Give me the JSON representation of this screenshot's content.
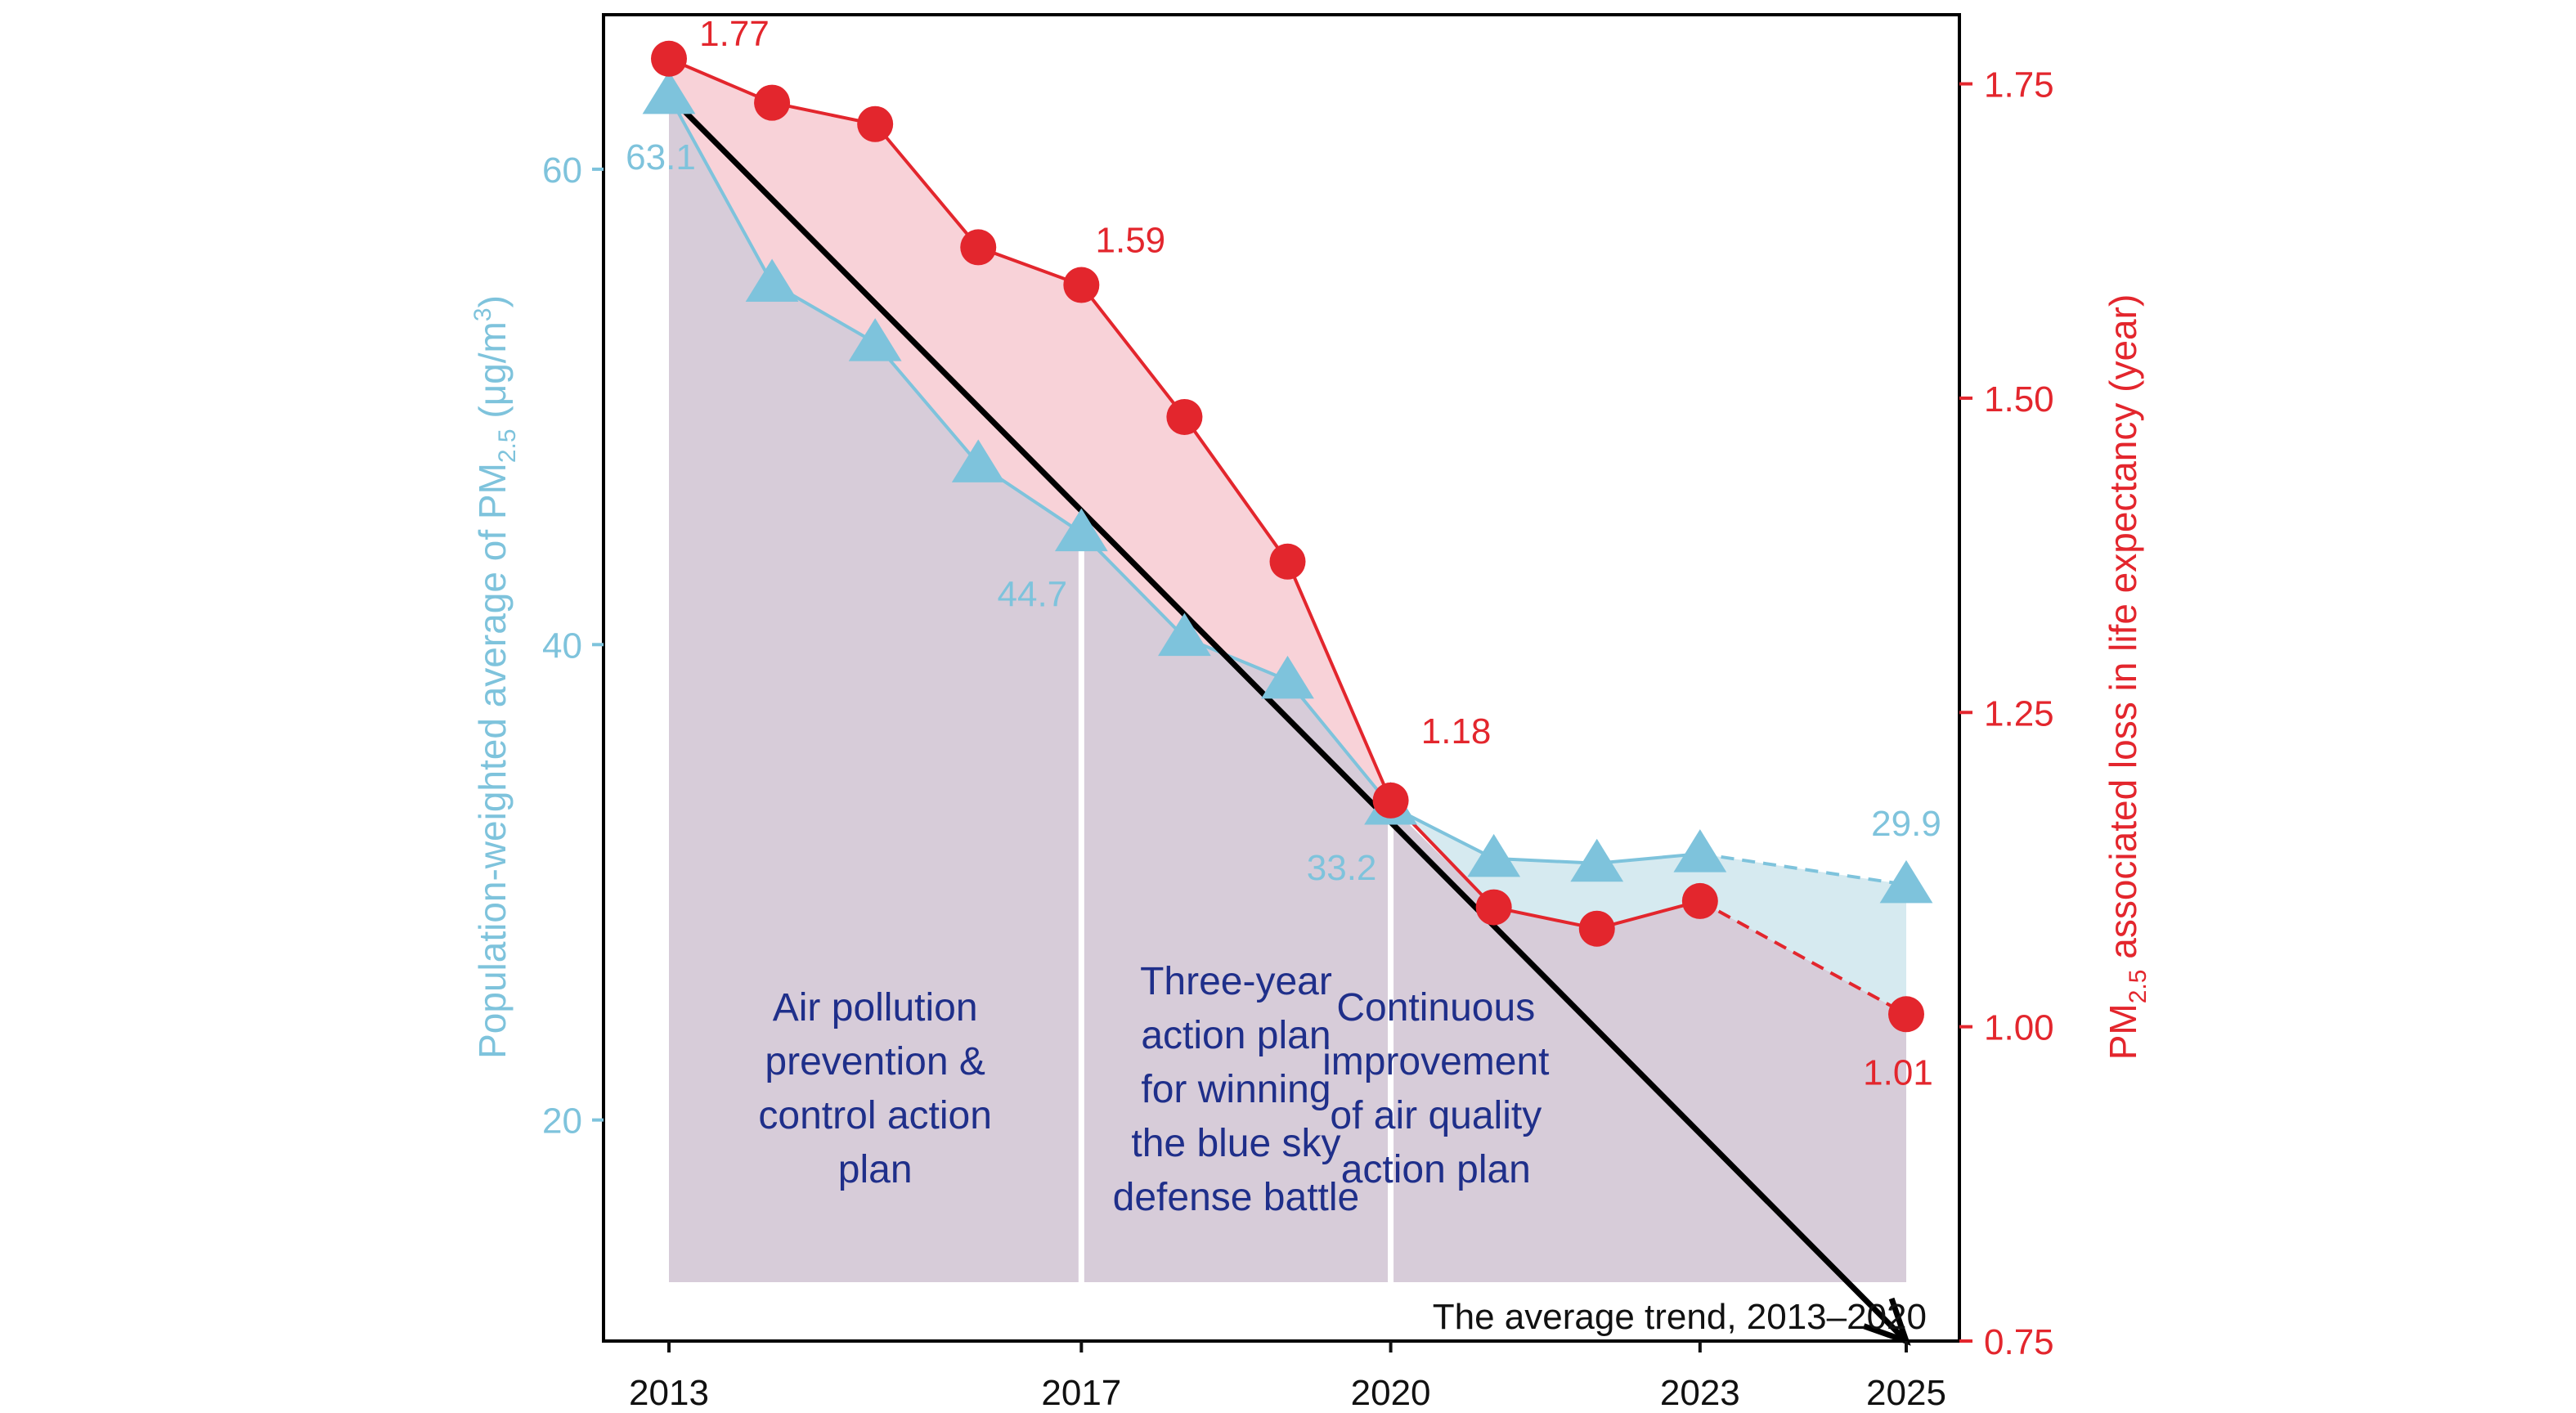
{
  "chart_data": {
    "type": "line",
    "x": [
      2013,
      2014,
      2015,
      2016,
      2017,
      2018,
      2019,
      2020,
      2021,
      2022,
      2023,
      2025
    ],
    "xticks": [
      "2013",
      "2017",
      "2020",
      "2023",
      "2025"
    ],
    "ylabel_left": "Population-weighted average of PM",
    "ylabel_left_sub": "2.5",
    "ylabel_left_unit": " (μg/m",
    "ylabel_left_unit_sup": "3",
    "ylabel_left_close": ")",
    "ylabel_right_pre": "PM",
    "ylabel_right_sub": "2.5",
    "ylabel_right_post": " associated loss in life expectancy (year)",
    "ylim_left": [
      10.7,
      66.5
    ],
    "ylim_right": [
      0.75,
      1.805
    ],
    "yticks_left": [
      "20",
      "40",
      "60"
    ],
    "yticks_right": [
      "0.75",
      "1.00",
      "1.25",
      "1.50",
      "1.75"
    ],
    "series": [
      {
        "axis": "left",
        "marker": "triangle",
        "color": "#7ec3dc",
        "values": [
          63.1,
          55.2,
          52.7,
          47.6,
          44.7,
          40.3,
          38.5,
          33.2,
          31.0,
          30.8,
          31.2,
          29.9
        ],
        "labels": [
          {
            "x": 2013,
            "text": "63.1"
          },
          {
            "x": 2017,
            "text": "44.7"
          },
          {
            "x": 2020,
            "text": "33.2"
          },
          {
            "x": 2025,
            "text": "29.9"
          }
        ]
      },
      {
        "axis": "right",
        "marker": "circle",
        "color": "#e3262d",
        "values": [
          1.77,
          1.735,
          1.718,
          1.62,
          1.59,
          1.485,
          1.37,
          1.18,
          1.095,
          1.078,
          1.1,
          1.01
        ],
        "labels": [
          {
            "x": 2013,
            "text": "1.77"
          },
          {
            "x": 2017,
            "text": "1.59"
          },
          {
            "x": 2020,
            "text": "1.18"
          },
          {
            "x": 2025,
            "text": "1.01"
          }
        ]
      }
    ],
    "trend": {
      "from": [
        2013,
        63.1
      ],
      "to": [
        2025,
        10.7
      ],
      "label": "The average trend, 2013–2020"
    },
    "phases": [
      {
        "from": 2013,
        "to": 2017,
        "lines": [
          "Air pollution",
          "prevention &",
          "control action",
          "plan"
        ]
      },
      {
        "from": 2017,
        "to": 2020,
        "lines": [
          "Three-year",
          "action plan",
          "for winning",
          "the blue sky",
          "defense battle"
        ]
      },
      {
        "from": 2020,
        "to": 2025,
        "lines": [
          "Continuous",
          "improvement",
          "of air quality",
          "action plan"
        ]
      }
    ],
    "colors": {
      "pm_fill": "#d6eaf0",
      "le_fill": "#f8d2d8",
      "phase_fill": "#d7ccd9",
      "phase_text": "#1f2f8a"
    }
  }
}
